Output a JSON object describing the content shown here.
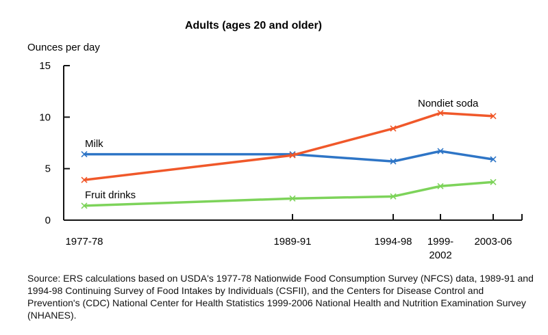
{
  "chart_data": {
    "type": "line",
    "title": "Adults (ages 20 and older)",
    "ylabel": "Ounces per day",
    "xlabel": "",
    "ylim": [
      0,
      15
    ],
    "yticks": [
      "0",
      "5",
      "10",
      "15"
    ],
    "categories": [
      "1977-78",
      "1989-91",
      "1994-98",
      "1999-2002",
      "2003-06"
    ],
    "category_labels": [
      [
        "1977-78"
      ],
      [
        "1989-91"
      ],
      [
        "1994-98"
      ],
      [
        "1999-",
        "2002"
      ],
      [
        "2003-06"
      ]
    ],
    "grid": false,
    "series": [
      {
        "name": "Milk",
        "color": "#2E75C6",
        "values": [
          6.4,
          6.4,
          5.7,
          6.7,
          5.9
        ]
      },
      {
        "name": "Nondiet soda",
        "color": "#F0582A",
        "values": [
          3.9,
          6.3,
          8.9,
          10.4,
          10.1
        ]
      },
      {
        "name": "Fruit drinks",
        "color": "#7DD35A",
        "values": [
          1.4,
          2.1,
          2.3,
          3.3,
          3.7
        ]
      }
    ]
  },
  "source": "Source: ERS calculations based on USDA's 1977-78 Nationwide Food Consumption Survey (NFCS) data, 1989-91 and 1994-98 Continuing Survey of Food Intakes by Individuals (CSFII), and the Centers for Disease Control and Prevention's (CDC) National Center for Health Statistics 1999-2006 National Health and Nutrition Examination Survey (NHANES)."
}
